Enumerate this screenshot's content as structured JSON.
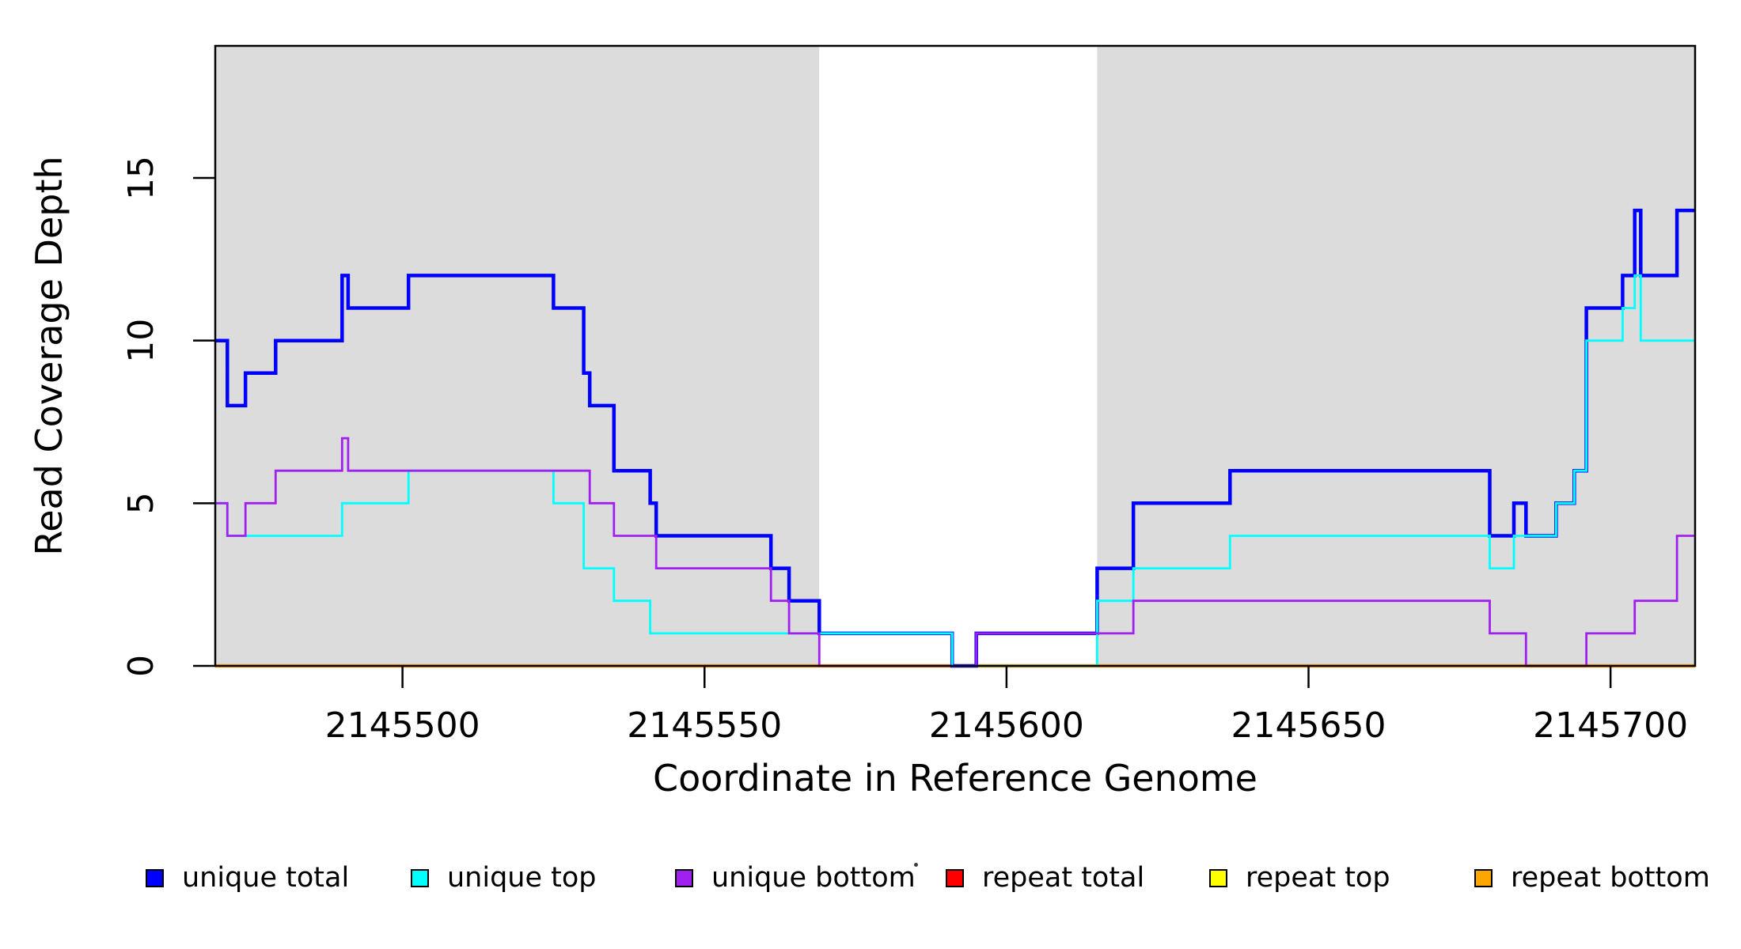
{
  "chart_data": {
    "type": "line",
    "subtype": "step-post-coverage",
    "title": "",
    "xlabel": "Coordinate in Reference Genome",
    "ylabel": "Read Coverage Depth",
    "xlim": [
      2145469,
      2145714
    ],
    "ylim": [
      0,
      19.06
    ],
    "xticks": [
      2145500,
      2145550,
      2145600,
      2145650,
      2145700
    ],
    "yticks": [
      0,
      5,
      10,
      15
    ],
    "grid": false,
    "legend_position": "bottom",
    "plot_background": "#ffffff",
    "shaded_regions": [
      {
        "name": "gray-region-left",
        "x0": 2145469,
        "x1": 2145569,
        "color": "#DCDCDC"
      },
      {
        "name": "coverage-gap-region",
        "x0": 2145569,
        "x1": 2145615,
        "color": "#FFFFFF"
      },
      {
        "name": "gray-region-right",
        "x0": 2145615,
        "x1": 2145714,
        "color": "#DCDCDC"
      }
    ],
    "series": [
      {
        "id": "repeat-total",
        "name": "repeat total",
        "color": "#FF0000",
        "lwd": 2.5,
        "steps": [
          [
            2145469,
            0
          ]
        ]
      },
      {
        "id": "repeat-top",
        "name": "repeat top",
        "color": "#FFFF00",
        "lwd": 2.5,
        "steps": [
          [
            2145469,
            0
          ]
        ]
      },
      {
        "id": "repeat-bottom",
        "name": "repeat bottom",
        "color": "#FFA500",
        "lwd": 4.5,
        "steps": [
          [
            2145469,
            0
          ]
        ]
      },
      {
        "id": "unique-total",
        "name": "unique total",
        "color": "#0000FF",
        "lwd": 4.5,
        "steps": [
          [
            2145469,
            10
          ],
          [
            2145471,
            8
          ],
          [
            2145474,
            9
          ],
          [
            2145479,
            10
          ],
          [
            2145490,
            12
          ],
          [
            2145491,
            11
          ],
          [
            2145501,
            12
          ],
          [
            2145525,
            11
          ],
          [
            2145530,
            9
          ],
          [
            2145531,
            8
          ],
          [
            2145535,
            6
          ],
          [
            2145541,
            5
          ],
          [
            2145542,
            4
          ],
          [
            2145561,
            3
          ],
          [
            2145564,
            2
          ],
          [
            2145569,
            1
          ],
          [
            2145591,
            0
          ],
          [
            2145595,
            1
          ],
          [
            2145615,
            3
          ],
          [
            2145621,
            5
          ],
          [
            2145637,
            6
          ],
          [
            2145680,
            4
          ],
          [
            2145684,
            5
          ],
          [
            2145686,
            4
          ],
          [
            2145691,
            5
          ],
          [
            2145694,
            6
          ],
          [
            2145696,
            11
          ],
          [
            2145702,
            12
          ],
          [
            2145704,
            14
          ],
          [
            2145705,
            12
          ],
          [
            2145711,
            14
          ]
        ]
      },
      {
        "id": "unique-top",
        "name": "unique top",
        "color": "#00FFFF",
        "lwd": 2.8,
        "steps": [
          [
            2145469,
            5
          ],
          [
            2145471,
            4
          ],
          [
            2145490,
            5
          ],
          [
            2145501,
            6
          ],
          [
            2145525,
            5
          ],
          [
            2145530,
            3
          ],
          [
            2145535,
            2
          ],
          [
            2145541,
            1
          ],
          [
            2145591,
            0
          ],
          [
            2145615,
            2
          ],
          [
            2145621,
            3
          ],
          [
            2145637,
            4
          ],
          [
            2145680,
            3
          ],
          [
            2145684,
            4
          ],
          [
            2145691,
            5
          ],
          [
            2145694,
            6
          ],
          [
            2145696,
            10
          ],
          [
            2145702,
            11
          ],
          [
            2145704,
            12
          ],
          [
            2145705,
            10
          ]
        ]
      },
      {
        "id": "unique-bottom",
        "name": "unique bottom",
        "color": "#A020F0",
        "lwd": 2.8,
        "steps": [
          [
            2145469,
            5
          ],
          [
            2145471,
            4
          ],
          [
            2145474,
            5
          ],
          [
            2145479,
            6
          ],
          [
            2145490,
            7
          ],
          [
            2145491,
            6
          ],
          [
            2145531,
            5
          ],
          [
            2145535,
            4
          ],
          [
            2145542,
            3
          ],
          [
            2145561,
            2
          ],
          [
            2145564,
            1
          ],
          [
            2145569,
            0
          ],
          [
            2145595,
            1
          ],
          [
            2145621,
            2
          ],
          [
            2145680,
            1
          ],
          [
            2145686,
            0
          ],
          [
            2145696,
            1
          ],
          [
            2145704,
            2
          ],
          [
            2145711,
            4
          ]
        ]
      }
    ]
  },
  "legend": {
    "items": [
      {
        "label": "unique total",
        "color": "#0000FF"
      },
      {
        "label": "unique top",
        "color": "#00FFFF"
      },
      {
        "label": "unique bottom",
        "color": "#A020F0"
      },
      {
        "label": "repeat total",
        "color": "#FF0000"
      },
      {
        "label": "repeat top",
        "color": "#FFFF00"
      },
      {
        "label": "repeat bottom",
        "color": "#FFA500"
      }
    ]
  }
}
